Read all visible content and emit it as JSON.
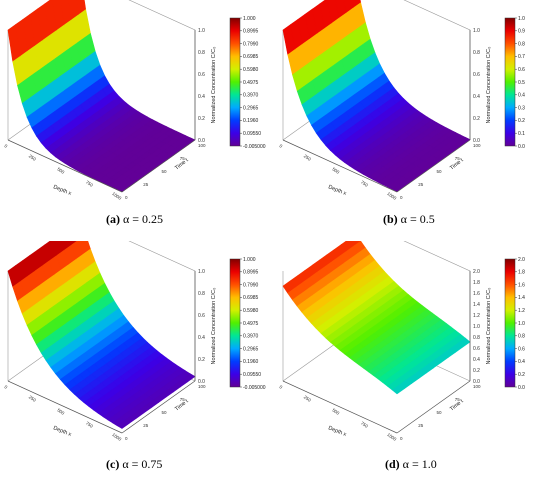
{
  "chart_data": [
    {
      "type": "surface",
      "panel_label": "(a)",
      "caption_param": "α = 0.25",
      "x_axis_label": "Depth x",
      "y_axis_label": "Time t",
      "z_axis_label": "Normalized Concentration C/C₀",
      "z_ticks": [
        "0.0",
        "0.2",
        "0.4",
        "0.6",
        "0.8",
        "1.0"
      ],
      "x_ticks": [
        "0",
        "250",
        "500",
        "750",
        "1000"
      ],
      "t_ticks": [
        "0",
        "25",
        "50",
        "75",
        "100"
      ],
      "colorbar_ticks": [
        "1.000",
        "0.8995",
        "0.7990",
        "0.6985",
        "0.5980",
        "0.4975",
        "0.3970",
        "0.2965",
        "0.1960",
        "0.09550",
        "-0.005000"
      ],
      "decay": 7.5,
      "zmax": 1.0,
      "floor": 0.0
    },
    {
      "type": "surface",
      "panel_label": "(b)",
      "caption_param": "α = 0.5",
      "x_axis_label": "Depth x",
      "y_axis_label": "Time t",
      "z_axis_label": "Normalized Concentration C/C₀",
      "z_ticks": [
        "0.0",
        "0.2",
        "0.4",
        "0.6",
        "0.8",
        "1.0"
      ],
      "x_ticks": [
        "0",
        "250",
        "500",
        "750",
        "1000"
      ],
      "t_ticks": [
        "0",
        "25",
        "50",
        "75",
        "100"
      ],
      "colorbar_ticks": [
        "1.0",
        "0.9",
        "0.8",
        "0.7",
        "0.6",
        "0.5",
        "0.4",
        "0.3",
        "0.2",
        "0.1",
        "0.0"
      ],
      "decay": 5.5,
      "zmax": 1.0,
      "floor": 0.0
    },
    {
      "type": "surface",
      "panel_label": "(c)",
      "caption_param": "α = 0.75",
      "x_axis_label": "Depth x",
      "y_axis_label": "Time t",
      "z_axis_label": "Normalized Concentration C/C₀",
      "z_ticks": [
        "0.0",
        "0.2",
        "0.4",
        "0.6",
        "0.8",
        "1.0"
      ],
      "x_ticks": [
        "0",
        "250",
        "500",
        "750",
        "1000"
      ],
      "t_ticks": [
        "0",
        "25",
        "50",
        "75",
        "100"
      ],
      "colorbar_ticks": [
        "1.000",
        "0.8995",
        "0.7990",
        "0.6985",
        "0.5980",
        "0.4975",
        "0.3970",
        "0.2965",
        "0.1960",
        "0.09550",
        "-0.005000"
      ],
      "decay": 3.2,
      "zmax": 1.0,
      "floor": 0.0
    },
    {
      "type": "surface",
      "panel_label": "(d)",
      "caption_param": "α = 1.0",
      "x_axis_label": "Depth x",
      "y_axis_label": "Time t",
      "z_axis_label": "Normalized Concentration C/C₀",
      "z_ticks": [
        "0.0",
        "0.2",
        "0.4",
        "0.6",
        "0.8",
        "1.0",
        "1.2",
        "1.4",
        "1.6",
        "1.8",
        "2.0"
      ],
      "x_ticks": [
        "0",
        "250",
        "500",
        "750",
        "1000"
      ],
      "t_ticks": [
        "0",
        "25",
        "50",
        "75",
        "100"
      ],
      "colorbar_ticks": [
        "2.0",
        "1.8",
        "1.6",
        "1.4",
        "1.2",
        "1.0",
        "0.8",
        "0.6",
        "0.4",
        "0.2",
        "0.0"
      ],
      "decay": 1.4,
      "zmax": 2.0,
      "floor": 0.15
    }
  ]
}
